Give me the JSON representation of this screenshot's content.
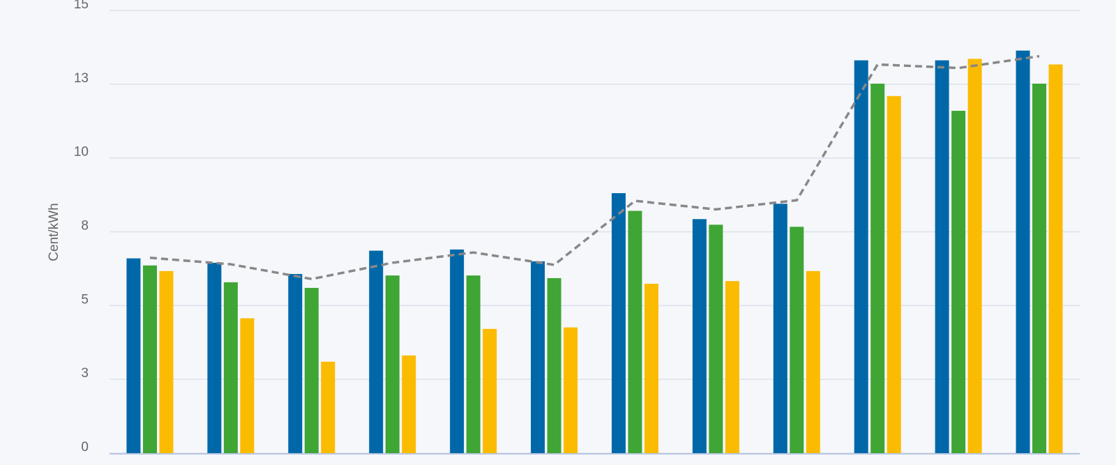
{
  "chart_data": {
    "type": "bar",
    "y_label": "Cent/kWh",
    "categories": [
      null,
      null,
      null,
      null,
      null,
      null,
      null,
      null,
      null,
      null,
      null,
      null
    ],
    "series": [
      {
        "color": "#0068a8",
        "values": [
          6.6,
          6.45,
          6.07,
          6.86,
          6.9,
          6.5,
          8.81,
          7.93,
          8.45,
          13.31,
          13.31,
          13.64
        ]
      },
      {
        "color": "#3fa535",
        "values": [
          6.36,
          5.79,
          5.6,
          6.02,
          6.02,
          5.93,
          8.21,
          7.74,
          7.67,
          12.52,
          11.6,
          12.52
        ]
      },
      {
        "color": "#fbbb00",
        "values": [
          6.17,
          4.57,
          3.1,
          3.31,
          4.21,
          4.26,
          5.74,
          5.83,
          6.17,
          12.1,
          13.36,
          13.17
        ]
      }
    ],
    "line": {
      "color": "#888888",
      "values": [
        6.62,
        6.4,
        5.9,
        6.45,
        6.8,
        6.38,
        8.55,
        8.26,
        8.57,
        13.17,
        13.05,
        13.45
      ]
    },
    "ylim": [
      0,
      15
    ],
    "yticks": [
      0,
      {
        "value": 2.5,
        "label": "3"
      },
      5,
      {
        "value": 7.5,
        "label": "8"
      },
      10,
      {
        "value": 12.5,
        "label": "13"
      },
      15
    ],
    "grid": true
  }
}
